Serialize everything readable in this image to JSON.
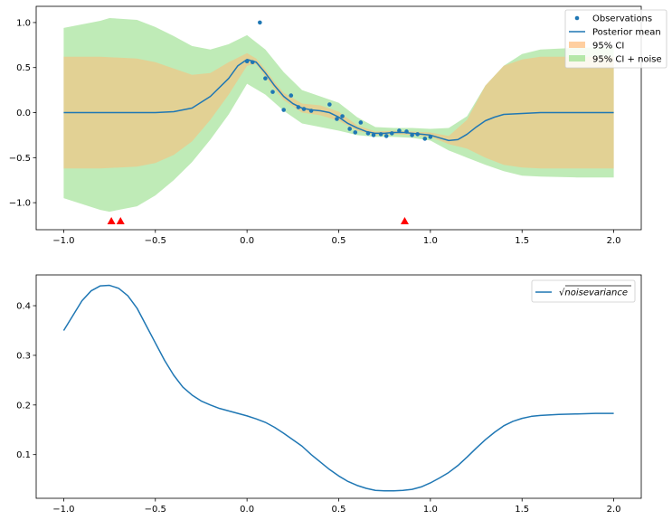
{
  "chart_data": [
    {
      "type": "line",
      "xlim": [
        -1.15,
        2.15
      ],
      "ylim": [
        -1.3,
        1.18
      ],
      "xticks": [
        -1.0,
        -0.5,
        0.0,
        0.5,
        1.0,
        1.5,
        2.0
      ],
      "xtick_labels": [
        "−1.0",
        "−0.5",
        "0.0",
        "0.5",
        "1.0",
        "1.5",
        "2.0"
      ],
      "yticks": [
        -1.0,
        -0.5,
        0.0,
        0.5,
        1.0
      ],
      "ytick_labels": [
        "−1.0",
        "−0.5",
        "0.0",
        "0.5",
        "1.0"
      ],
      "legend_position": "top-right",
      "series": [
        {
          "name": "Observations",
          "kind": "scatter",
          "color": "#1f77b4",
          "x": [
            0.0,
            0.03,
            0.07,
            0.1,
            0.14,
            0.2,
            0.24,
            0.28,
            0.31,
            0.35,
            0.45,
            0.49,
            0.52,
            0.56,
            0.59,
            0.62,
            0.66,
            0.69,
            0.73,
            0.76,
            0.79,
            0.83,
            0.87,
            0.9,
            0.93,
            0.97,
            1.0
          ],
          "y": [
            0.57,
            0.56,
            1.0,
            0.38,
            0.23,
            0.03,
            0.19,
            0.06,
            0.04,
            0.02,
            0.09,
            -0.07,
            -0.04,
            -0.18,
            -0.22,
            -0.11,
            -0.23,
            -0.25,
            -0.24,
            -0.26,
            -0.23,
            -0.2,
            -0.21,
            -0.25,
            -0.24,
            -0.29,
            -0.27
          ]
        },
        {
          "name": "Posterior mean",
          "kind": "line",
          "color": "#1f77b4",
          "x": [
            -1.0,
            -0.8,
            -0.6,
            -0.5,
            -0.4,
            -0.3,
            -0.2,
            -0.1,
            -0.05,
            0.0,
            0.05,
            0.1,
            0.15,
            0.2,
            0.25,
            0.3,
            0.35,
            0.4,
            0.45,
            0.5,
            0.55,
            0.6,
            0.65,
            0.7,
            0.75,
            0.8,
            0.85,
            0.9,
            0.95,
            1.0,
            1.05,
            1.1,
            1.15,
            1.2,
            1.25,
            1.3,
            1.35,
            1.4,
            1.5,
            1.6,
            1.8,
            2.0
          ],
          "y": [
            0.0,
            0.0,
            0.0,
            0.0,
            0.01,
            0.05,
            0.18,
            0.38,
            0.52,
            0.59,
            0.56,
            0.44,
            0.3,
            0.18,
            0.1,
            0.05,
            0.03,
            0.02,
            0.0,
            -0.05,
            -0.12,
            -0.17,
            -0.21,
            -0.23,
            -0.23,
            -0.22,
            -0.22,
            -0.23,
            -0.24,
            -0.25,
            -0.28,
            -0.31,
            -0.3,
            -0.24,
            -0.16,
            -0.09,
            -0.05,
            -0.02,
            -0.01,
            0.0,
            0.0,
            0.0
          ]
        },
        {
          "name": "95% CI",
          "kind": "band",
          "color": "#ffbb78",
          "x": [
            -1.0,
            -0.8,
            -0.6,
            -0.5,
            -0.4,
            -0.3,
            -0.2,
            -0.1,
            0.0,
            0.05,
            0.1,
            0.15,
            0.2,
            0.3,
            0.4,
            0.5,
            0.6,
            0.7,
            0.8,
            0.9,
            1.0,
            1.1,
            1.2,
            1.3,
            1.4,
            1.5,
            1.6,
            1.8,
            2.0
          ],
          "lower": [
            -0.62,
            -0.62,
            -0.6,
            -0.56,
            -0.47,
            -0.32,
            -0.08,
            0.2,
            0.52,
            0.54,
            0.4,
            0.26,
            0.14,
            0.0,
            -0.03,
            -0.09,
            -0.2,
            -0.25,
            -0.24,
            -0.25,
            -0.27,
            -0.35,
            -0.4,
            -0.5,
            -0.58,
            -0.61,
            -0.62,
            -0.62,
            -0.62
          ],
          "upper": [
            0.62,
            0.62,
            0.6,
            0.56,
            0.49,
            0.42,
            0.44,
            0.56,
            0.66,
            0.6,
            0.48,
            0.34,
            0.22,
            0.1,
            0.08,
            0.01,
            -0.14,
            -0.21,
            -0.2,
            -0.21,
            -0.22,
            -0.26,
            -0.08,
            0.3,
            0.52,
            0.59,
            0.62,
            0.62,
            0.62
          ]
        },
        {
          "name": "95% CI + noise",
          "kind": "band",
          "color": "#98df8a",
          "x": [
            -1.0,
            -0.8,
            -0.75,
            -0.6,
            -0.5,
            -0.4,
            -0.3,
            -0.2,
            -0.1,
            0.0,
            0.1,
            0.2,
            0.3,
            0.4,
            0.5,
            0.6,
            0.7,
            0.8,
            0.9,
            1.0,
            1.1,
            1.2,
            1.3,
            1.4,
            1.5,
            1.6,
            1.8,
            2.0
          ],
          "lower": [
            -0.95,
            -1.08,
            -1.1,
            -1.04,
            -0.92,
            -0.75,
            -0.55,
            -0.3,
            -0.02,
            0.32,
            0.2,
            0.02,
            -0.12,
            -0.16,
            -0.2,
            -0.25,
            -0.27,
            -0.27,
            -0.28,
            -0.31,
            -0.42,
            -0.5,
            -0.58,
            -0.65,
            -0.7,
            -0.71,
            -0.72,
            -0.72
          ],
          "upper": [
            0.94,
            1.02,
            1.05,
            1.03,
            0.95,
            0.85,
            0.74,
            0.7,
            0.76,
            0.86,
            0.7,
            0.45,
            0.25,
            0.18,
            0.11,
            -0.05,
            -0.16,
            -0.17,
            -0.17,
            -0.18,
            -0.17,
            -0.04,
            0.3,
            0.52,
            0.65,
            0.7,
            0.72,
            0.72
          ]
        }
      ],
      "markers": {
        "kind": "triangle-marker",
        "color": "#ff0000",
        "x": [
          -0.74,
          -0.69,
          0.86
        ],
        "y": [
          -1.2,
          -1.2,
          -1.2
        ]
      }
    },
    {
      "type": "line",
      "xlim": [
        -1.15,
        2.15
      ],
      "ylim": [
        0.012,
        0.462
      ],
      "xticks": [
        -1.0,
        -0.5,
        0.0,
        0.5,
        1.0,
        1.5,
        2.0
      ],
      "xtick_labels": [
        "−1.0",
        "−0.5",
        "0.0",
        "0.5",
        "1.0",
        "1.5",
        "2.0"
      ],
      "yticks": [
        0.1,
        0.2,
        0.3,
        0.4
      ],
      "ytick_labels": [
        "0.1",
        "0.2",
        "0.3",
        "0.4"
      ],
      "legend_position": "top-right",
      "series": [
        {
          "name": "√noisevariance",
          "kind": "line",
          "color": "#1f77b4",
          "x": [
            -1.0,
            -0.95,
            -0.9,
            -0.85,
            -0.8,
            -0.75,
            -0.7,
            -0.65,
            -0.6,
            -0.55,
            -0.5,
            -0.45,
            -0.4,
            -0.35,
            -0.3,
            -0.25,
            -0.2,
            -0.15,
            -0.1,
            -0.05,
            0.0,
            0.05,
            0.1,
            0.15,
            0.2,
            0.25,
            0.3,
            0.35,
            0.4,
            0.45,
            0.5,
            0.55,
            0.6,
            0.65,
            0.7,
            0.75,
            0.8,
            0.85,
            0.9,
            0.95,
            1.0,
            1.05,
            1.1,
            1.15,
            1.2,
            1.25,
            1.3,
            1.35,
            1.4,
            1.45,
            1.5,
            1.55,
            1.6,
            1.7,
            1.8,
            1.9,
            2.0
          ],
          "y": [
            0.35,
            0.38,
            0.41,
            0.43,
            0.44,
            0.441,
            0.435,
            0.42,
            0.395,
            0.36,
            0.325,
            0.29,
            0.26,
            0.236,
            0.22,
            0.208,
            0.2,
            0.193,
            0.188,
            0.183,
            0.178,
            0.172,
            0.165,
            0.155,
            0.143,
            0.13,
            0.117,
            0.1,
            0.085,
            0.07,
            0.057,
            0.046,
            0.038,
            0.032,
            0.028,
            0.027,
            0.027,
            0.028,
            0.03,
            0.035,
            0.043,
            0.053,
            0.064,
            0.078,
            0.095,
            0.113,
            0.13,
            0.145,
            0.158,
            0.167,
            0.173,
            0.177,
            0.179,
            0.181,
            0.182,
            0.183,
            0.183
          ]
        }
      ]
    }
  ]
}
